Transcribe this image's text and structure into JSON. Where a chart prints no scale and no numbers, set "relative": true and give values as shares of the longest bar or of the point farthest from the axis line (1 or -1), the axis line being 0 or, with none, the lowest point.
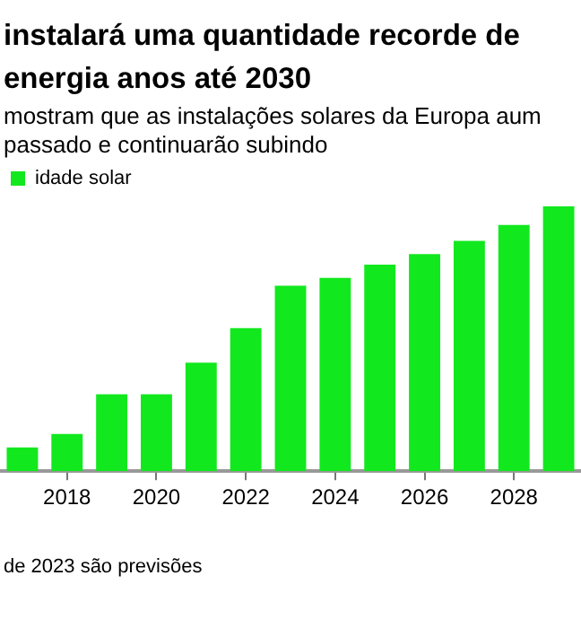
{
  "chart_data": {
    "type": "bar",
    "title": "instalará uma quantidade recorde de energia anos até 2030",
    "subtitle": "mostram que as instalações solares da Europa aum passado e continuarão subindo",
    "relative": true,
    "categories": [
      null,
      "2018",
      null,
      "2020",
      null,
      "2022",
      null,
      "2024",
      null,
      "2026",
      null,
      "2028",
      null
    ],
    "series": [
      {
        "name": "idade solar",
        "color": "#12e81e",
        "values": [
          0.09,
          0.14,
          0.29,
          0.29,
          0.41,
          0.54,
          0.7,
          0.73,
          0.78,
          0.82,
          0.87,
          0.93,
          1
        ]
      }
    ],
    "legend": "top left",
    "grid": false,
    "annotations": [
      "de 2023 são previsões"
    ]
  }
}
